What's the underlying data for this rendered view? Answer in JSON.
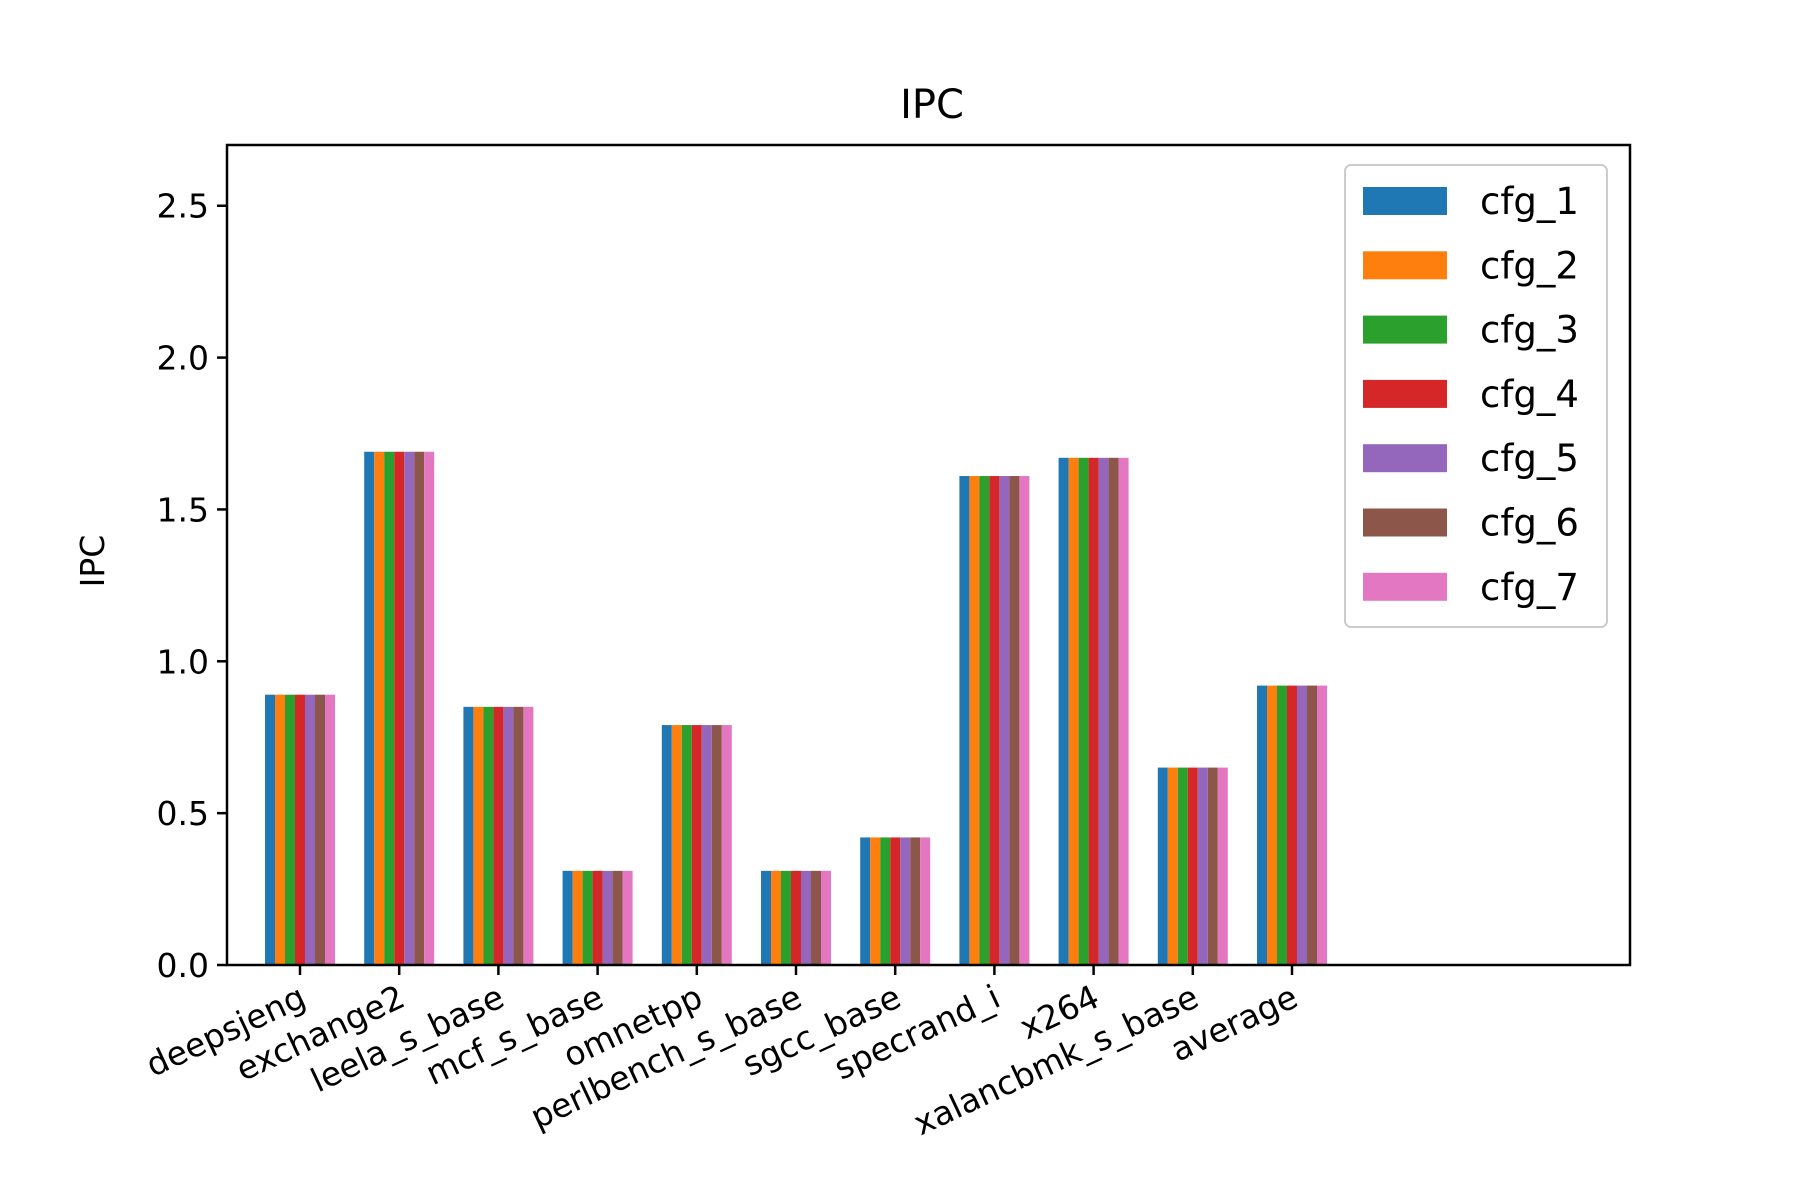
{
  "chart_data": {
    "type": "bar",
    "title": "IPC",
    "xlabel": "",
    "ylabel": "IPC",
    "ylim": [
      0,
      2.7
    ],
    "yticks": [
      "0.0",
      "0.5",
      "1.0",
      "1.5",
      "2.0",
      "2.5"
    ],
    "grid": false,
    "legend_position": "top-right",
    "categories": [
      "deepsjeng",
      "exchange2",
      "leela_s_base",
      "mcf_s_base",
      "omnetpp",
      "perlbench_s_base",
      "sgcc_base",
      "specrand_i",
      "x264",
      "xalancbmk_s_base",
      "average"
    ],
    "series": [
      {
        "name": "cfg_1",
        "color": "#1f77b4",
        "values": [
          0.89,
          1.69,
          0.85,
          0.31,
          0.79,
          0.31,
          0.42,
          1.61,
          1.67,
          0.65,
          0.92
        ]
      },
      {
        "name": "cfg_2",
        "color": "#ff7f0e",
        "values": [
          0.89,
          1.69,
          0.85,
          0.31,
          0.79,
          0.31,
          0.42,
          1.61,
          1.67,
          0.65,
          0.92
        ]
      },
      {
        "name": "cfg_3",
        "color": "#2ca02c",
        "values": [
          0.89,
          1.69,
          0.85,
          0.31,
          0.79,
          0.31,
          0.42,
          1.61,
          1.67,
          0.65,
          0.92
        ]
      },
      {
        "name": "cfg_4",
        "color": "#d62728",
        "values": [
          0.89,
          1.69,
          0.85,
          0.31,
          0.79,
          0.31,
          0.42,
          1.61,
          1.67,
          0.65,
          0.92
        ]
      },
      {
        "name": "cfg_5",
        "color": "#9467bd",
        "values": [
          0.89,
          1.69,
          0.85,
          0.31,
          0.79,
          0.31,
          0.42,
          1.61,
          1.67,
          0.65,
          0.92
        ]
      },
      {
        "name": "cfg_6",
        "color": "#8c564b",
        "values": [
          0.89,
          1.69,
          0.85,
          0.31,
          0.79,
          0.31,
          0.42,
          1.61,
          1.67,
          0.65,
          0.92
        ]
      },
      {
        "name": "cfg_7",
        "color": "#e377c2",
        "values": [
          0.89,
          1.69,
          0.85,
          0.31,
          0.79,
          0.31,
          0.42,
          1.61,
          1.67,
          0.65,
          0.92
        ]
      }
    ]
  }
}
